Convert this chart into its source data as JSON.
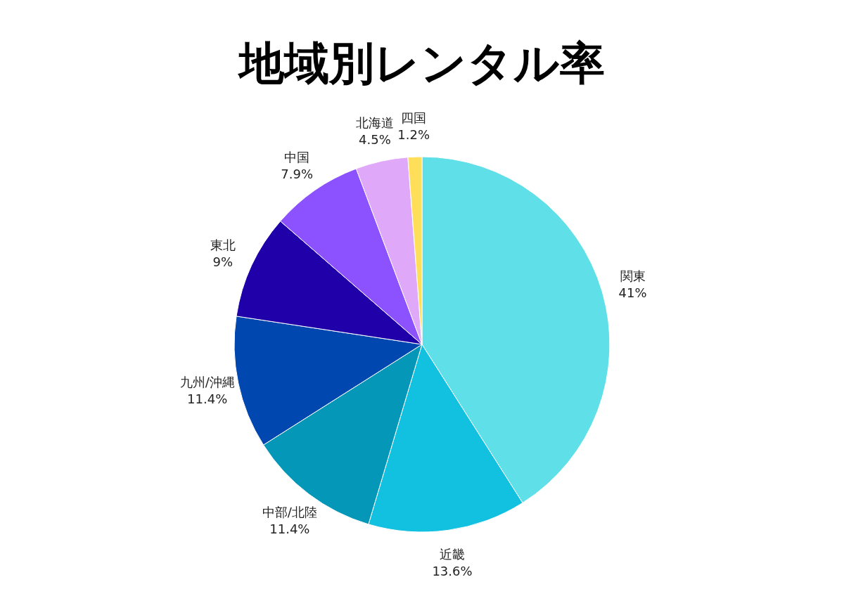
{
  "chart_data": {
    "type": "pie",
    "title": "地域別レンタル率",
    "categories": [
      "関東",
      "近畿",
      "中部/北陸",
      "九州/沖縄",
      "東北",
      "中国",
      "北海道",
      "四国"
    ],
    "values": [
      41,
      13.6,
      11.4,
      11.4,
      9,
      7.9,
      4.5,
      1.2
    ],
    "colors": [
      "#5fe0e8",
      "#12c0e0",
      "#0597b8",
      "#0048b0",
      "#2000a8",
      "#8c52ff",
      "#e0a8f8",
      "#ffde59"
    ],
    "value_labels": [
      "41%",
      "13.6%",
      "11.4%",
      "11.4%",
      "9%",
      "7.9%",
      "4.5%",
      "1.2%"
    ]
  }
}
